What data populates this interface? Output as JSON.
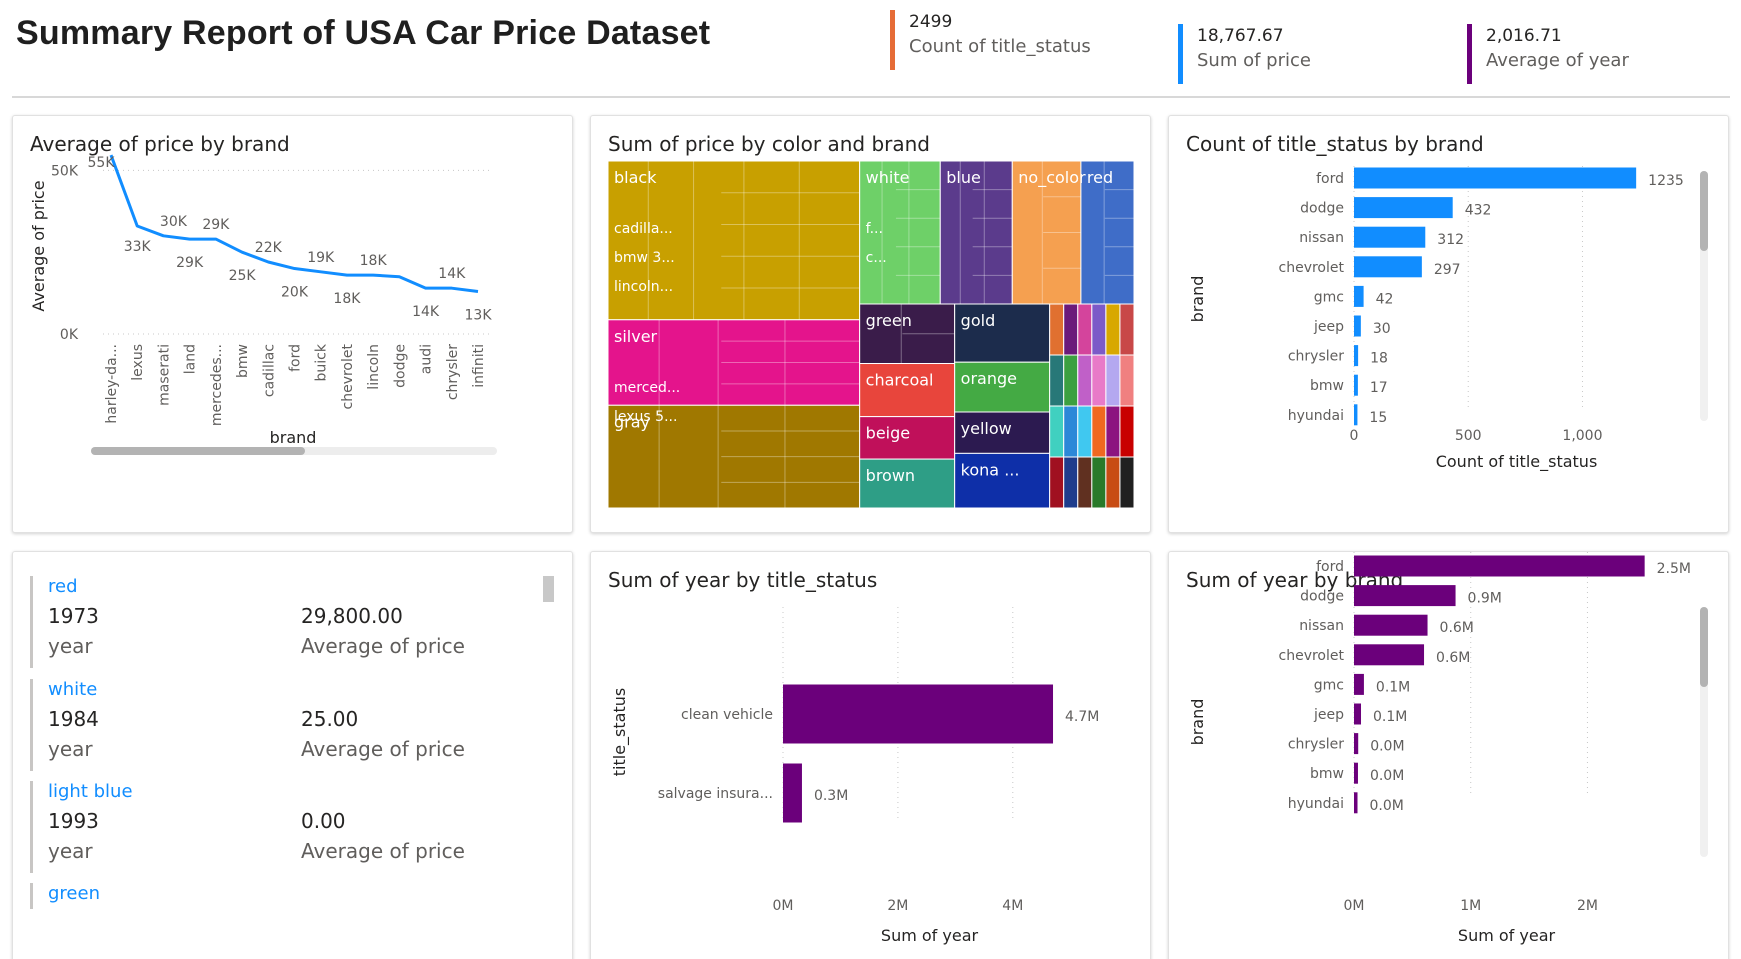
{
  "header": {
    "title": "Summary Report of USA Car Price Dataset",
    "kpis": [
      {
        "value": "2499",
        "label": "Count of title_status",
        "color": "#E66C37"
      },
      {
        "value": "18,767.67",
        "label": "Sum of price",
        "color": "#118DFF"
      },
      {
        "value": "2,016.71",
        "label": "Average of year",
        "color": "#6B007B"
      }
    ]
  },
  "chart_data": [
    {
      "id": "avg_price_by_brand",
      "type": "line",
      "title": "Average of price by brand",
      "xlabel": "brand",
      "ylabel": "Average of price",
      "categories": [
        "harley-da...",
        "lexus",
        "maserati",
        "land",
        "mercedes...",
        "bmw",
        "cadillac",
        "ford",
        "buick",
        "chevrolet",
        "lincoln",
        "dodge",
        "audi",
        "chrysler",
        "infiniti"
      ],
      "values": [
        54680,
        33000,
        30000,
        29000,
        29000,
        25000,
        22000,
        20000,
        19000,
        18000,
        18000,
        17500,
        14000,
        14000,
        13000
      ],
      "data_labels": [
        "55K",
        "33K",
        "30K",
        "29K",
        "29K",
        "25K",
        "22K",
        "20K",
        "19K",
        "18K",
        "18K",
        "",
        "14K",
        "14K",
        "13K"
      ],
      "yticks": [
        {
          "value": 0,
          "label": "0K"
        },
        {
          "value": 50000,
          "label": "50K"
        }
      ],
      "ylim": [
        0,
        55000
      ],
      "color": "#118DFF",
      "grid": true
    },
    {
      "id": "price_by_color_brand",
      "type": "treemap",
      "title": "Sum of price by color and brand",
      "groups": [
        {
          "name": "black",
          "color": "#C8A000",
          "share": 0.1575,
          "children": [
            "cadilla...",
            "bmw 3...",
            "lincoln..."
          ]
        },
        {
          "name": "white",
          "color": "#6ED068",
          "share": 0.0715,
          "children": [
            "f...",
            "c..."
          ]
        },
        {
          "name": "blue",
          "color": "#5B3B8C",
          "share": 0.0639,
          "children": []
        },
        {
          "name": "no_color",
          "color": "#F5A050",
          "share": 0.0609,
          "children": []
        },
        {
          "name": "red",
          "color": "#3F6DC8",
          "share": 0.0471,
          "children": []
        },
        {
          "name": "silver",
          "color": "#E4148C",
          "share": 0.0848,
          "children": [
            "merced...",
            "lexus 5..."
          ]
        },
        {
          "name": "gray",
          "color": "#A07800",
          "share": 0.1019,
          "children": []
        },
        {
          "name": "green",
          "color": "#3A1C4A",
          "share": 0.0325,
          "children": []
        },
        {
          "name": "charcoal",
          "color": "#E8453C",
          "share": 0.029,
          "children": []
        },
        {
          "name": "beige",
          "color": "#C0105A",
          "share": 0.0232,
          "children": []
        },
        {
          "name": "brown",
          "color": "#2E9E86",
          "share": 0.0267,
          "children": []
        },
        {
          "name": "gold",
          "color": "#1C2C4C",
          "share": 0.0325,
          "children": []
        },
        {
          "name": "orange",
          "color": "#44AA44",
          "share": 0.0278,
          "children": []
        },
        {
          "name": "yellow",
          "color": "#2C1A50",
          "share": 0.0231,
          "children": []
        },
        {
          "name": "kona ...",
          "color": "#0E2FA8",
          "share": 0.0305,
          "children": []
        }
      ]
    },
    {
      "id": "count_title_status_by_brand",
      "type": "bar",
      "orientation": "horizontal",
      "title": "Count of title_status by brand",
      "xlabel": "Count of title_status",
      "ylabel": "brand",
      "categories": [
        "ford",
        "dodge",
        "nissan",
        "chevrolet",
        "gmc",
        "jeep",
        "chrysler",
        "bmw",
        "hyundai"
      ],
      "values": [
        1235,
        432,
        312,
        297,
        42,
        30,
        18,
        17,
        15
      ],
      "data_labels": [
        "1235",
        "432",
        "312",
        "297",
        "42",
        "30",
        "18",
        "17",
        "15"
      ],
      "xticks": [
        {
          "value": 0,
          "label": "0"
        },
        {
          "value": 500,
          "label": "500"
        },
        {
          "value": 1000,
          "label": "1,000"
        }
      ],
      "xlim": [
        0,
        1370
      ],
      "color": "#118DFF",
      "grid": true
    },
    {
      "id": "sum_year_by_title_status",
      "type": "bar",
      "orientation": "horizontal",
      "title": "Sum of year by title_status",
      "xlabel": "Sum of year",
      "ylabel": "title_status",
      "categories": [
        "clean vehicle",
        "salvage insura..."
      ],
      "values": [
        4700000,
        330000
      ],
      "data_labels": [
        "4.7M",
        "0.3M"
      ],
      "xticks": [
        {
          "value": 0,
          "label": "0M"
        },
        {
          "value": 2000000,
          "label": "2M"
        },
        {
          "value": 4000000,
          "label": "4M"
        }
      ],
      "xlim": [
        0,
        5100000
      ],
      "color": "#6B007B",
      "grid": true
    },
    {
      "id": "sum_year_by_brand",
      "type": "bar",
      "orientation": "horizontal",
      "title": "Sum of year by brand",
      "xlabel": "Sum of year",
      "ylabel": "brand",
      "categories": [
        "ford",
        "dodge",
        "nissan",
        "chevrolet",
        "gmc",
        "jeep",
        "chrysler",
        "bmw",
        "hyundai"
      ],
      "values": [
        2490000,
        870000,
        630000,
        600000,
        85000,
        60000,
        36000,
        34000,
        30000
      ],
      "data_labels": [
        "2.5M",
        "0.9M",
        "0.6M",
        "0.6M",
        "0.1M",
        "0.1M",
        "0.0M",
        "0.0M",
        "0.0M"
      ],
      "xticks": [
        {
          "value": 0,
          "label": "0M"
        },
        {
          "value": 1000000,
          "label": "1M"
        },
        {
          "value": 2000000,
          "label": "2M"
        }
      ],
      "xlim": [
        0,
        2750000
      ],
      "color": "#6B007B",
      "grid": true
    }
  ],
  "multirow": {
    "rows": [
      {
        "color": "red",
        "year": "1973",
        "year_label": "year",
        "price": "29,800.00",
        "price_label": "Average of price"
      },
      {
        "color": "white",
        "year": "1984",
        "year_label": "year",
        "price": "25.00",
        "price_label": "Average of price"
      },
      {
        "color": "light blue",
        "year": "1993",
        "year_label": "year",
        "price": "0.00",
        "price_label": "Average of price"
      },
      {
        "color": "green",
        "year": "",
        "year_label": "",
        "price": "",
        "price_label": ""
      }
    ]
  }
}
